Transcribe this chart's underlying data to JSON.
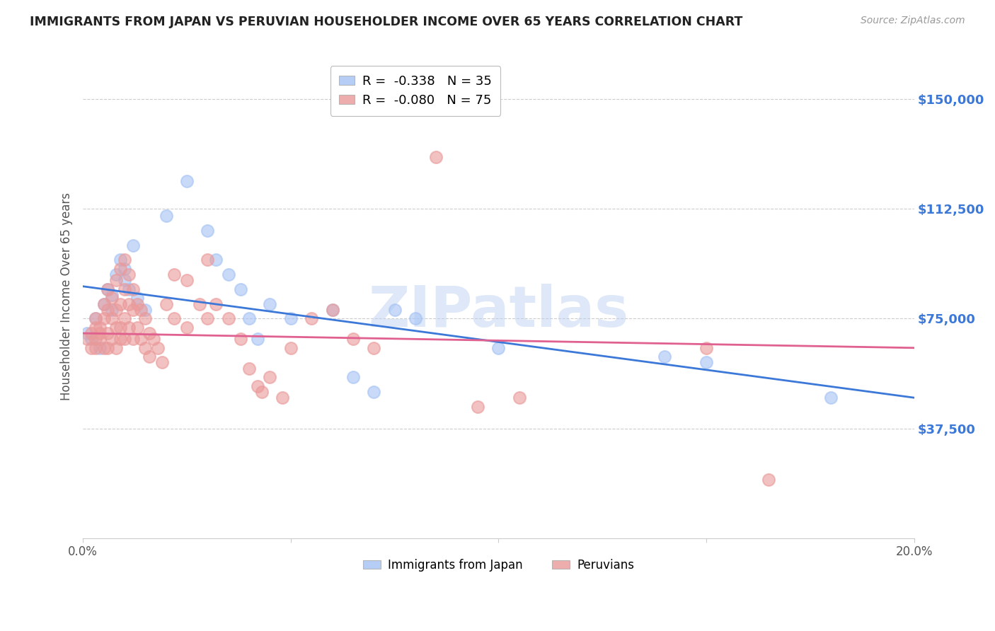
{
  "title": "IMMIGRANTS FROM JAPAN VS PERUVIAN HOUSEHOLDER INCOME OVER 65 YEARS CORRELATION CHART",
  "source": "Source: ZipAtlas.com",
  "ylabel": "Householder Income Over 65 years",
  "ytick_labels": [
    "$150,000",
    "$112,500",
    "$75,000",
    "$37,500"
  ],
  "ytick_values": [
    150000,
    112500,
    75000,
    37500
  ],
  "ylim": [
    0,
    165000
  ],
  "xlim": [
    0.0,
    0.2
  ],
  "legend_japan": "R =  -0.338   N = 35",
  "legend_peru": "R =  -0.080   N = 75",
  "legend_label_japan": "Immigrants from Japan",
  "legend_label_peru": "Peruvians",
  "japan_color": "#a4c2f4",
  "peru_color": "#ea9999",
  "japan_line_color": "#3c78d8",
  "peru_line_color": "#e06090",
  "japan_line": [
    0.0,
    86000,
    0.2,
    48000
  ],
  "peru_line": [
    0.0,
    70000,
    0.2,
    65000
  ],
  "japan_scatter": [
    [
      0.001,
      70000
    ],
    [
      0.002,
      68000
    ],
    [
      0.003,
      75000
    ],
    [
      0.004,
      65000
    ],
    [
      0.005,
      80000
    ],
    [
      0.006,
      85000
    ],
    [
      0.007,
      78000
    ],
    [
      0.007,
      83000
    ],
    [
      0.008,
      90000
    ],
    [
      0.009,
      95000
    ],
    [
      0.01,
      92000
    ],
    [
      0.01,
      88000
    ],
    [
      0.011,
      85000
    ],
    [
      0.012,
      100000
    ],
    [
      0.013,
      82000
    ],
    [
      0.015,
      78000
    ],
    [
      0.02,
      110000
    ],
    [
      0.025,
      122000
    ],
    [
      0.03,
      105000
    ],
    [
      0.032,
      95000
    ],
    [
      0.035,
      90000
    ],
    [
      0.038,
      85000
    ],
    [
      0.04,
      75000
    ],
    [
      0.042,
      68000
    ],
    [
      0.045,
      80000
    ],
    [
      0.05,
      75000
    ],
    [
      0.06,
      78000
    ],
    [
      0.065,
      55000
    ],
    [
      0.07,
      50000
    ],
    [
      0.075,
      78000
    ],
    [
      0.08,
      75000
    ],
    [
      0.1,
      65000
    ],
    [
      0.14,
      62000
    ],
    [
      0.15,
      60000
    ],
    [
      0.18,
      48000
    ]
  ],
  "peru_scatter": [
    [
      0.001,
      68000
    ],
    [
      0.002,
      65000
    ],
    [
      0.002,
      70000
    ],
    [
      0.003,
      72000
    ],
    [
      0.003,
      68000
    ],
    [
      0.003,
      75000
    ],
    [
      0.003,
      65000
    ],
    [
      0.004,
      70000
    ],
    [
      0.004,
      72000
    ],
    [
      0.004,
      68000
    ],
    [
      0.005,
      75000
    ],
    [
      0.005,
      80000
    ],
    [
      0.005,
      65000
    ],
    [
      0.006,
      85000
    ],
    [
      0.006,
      70000
    ],
    [
      0.006,
      78000
    ],
    [
      0.006,
      65000
    ],
    [
      0.007,
      82000
    ],
    [
      0.007,
      75000
    ],
    [
      0.007,
      68000
    ],
    [
      0.008,
      88000
    ],
    [
      0.008,
      78000
    ],
    [
      0.008,
      72000
    ],
    [
      0.008,
      65000
    ],
    [
      0.009,
      92000
    ],
    [
      0.009,
      80000
    ],
    [
      0.009,
      72000
    ],
    [
      0.009,
      68000
    ],
    [
      0.01,
      95000
    ],
    [
      0.01,
      85000
    ],
    [
      0.01,
      75000
    ],
    [
      0.01,
      68000
    ],
    [
      0.011,
      90000
    ],
    [
      0.011,
      80000
    ],
    [
      0.011,
      72000
    ],
    [
      0.012,
      85000
    ],
    [
      0.012,
      78000
    ],
    [
      0.012,
      68000
    ],
    [
      0.013,
      80000
    ],
    [
      0.013,
      72000
    ],
    [
      0.014,
      78000
    ],
    [
      0.014,
      68000
    ],
    [
      0.015,
      75000
    ],
    [
      0.015,
      65000
    ],
    [
      0.016,
      70000
    ],
    [
      0.016,
      62000
    ],
    [
      0.017,
      68000
    ],
    [
      0.018,
      65000
    ],
    [
      0.019,
      60000
    ],
    [
      0.02,
      80000
    ],
    [
      0.022,
      90000
    ],
    [
      0.022,
      75000
    ],
    [
      0.025,
      88000
    ],
    [
      0.025,
      72000
    ],
    [
      0.028,
      80000
    ],
    [
      0.03,
      95000
    ],
    [
      0.03,
      75000
    ],
    [
      0.032,
      80000
    ],
    [
      0.035,
      75000
    ],
    [
      0.038,
      68000
    ],
    [
      0.04,
      58000
    ],
    [
      0.042,
      52000
    ],
    [
      0.043,
      50000
    ],
    [
      0.045,
      55000
    ],
    [
      0.048,
      48000
    ],
    [
      0.05,
      65000
    ],
    [
      0.055,
      75000
    ],
    [
      0.06,
      78000
    ],
    [
      0.065,
      68000
    ],
    [
      0.07,
      65000
    ],
    [
      0.085,
      130000
    ],
    [
      0.095,
      45000
    ],
    [
      0.105,
      48000
    ],
    [
      0.15,
      65000
    ],
    [
      0.165,
      20000
    ]
  ],
  "watermark": "ZIPatlas",
  "background_color": "#ffffff",
  "grid_color": "#cccccc",
  "title_color": "#222222",
  "ytick_color": "#3c78d8",
  "source_color": "#999999"
}
